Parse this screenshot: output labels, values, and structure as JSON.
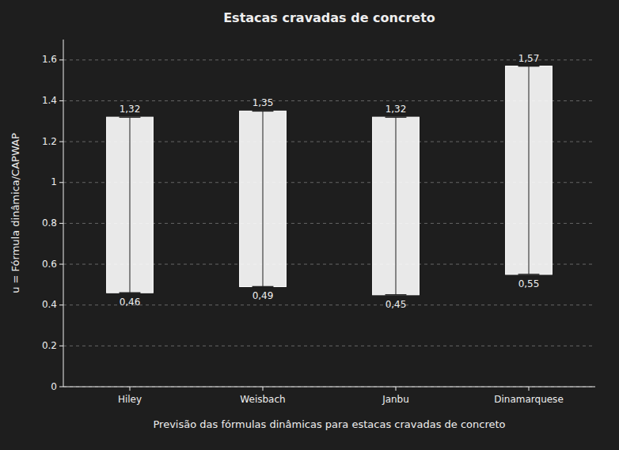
{
  "chart_data": {
    "type": "bar",
    "title": "Estacas cravadas de concreto",
    "xlabel": "Previsão das fórmulas dinâmicas para estacas cravadas de concreto",
    "ylabel": "u = Fórmula dinâmica/CAPWAP",
    "categories": [
      "Hiley",
      "Weisbach",
      "Janbu",
      "Dinamarquese"
    ],
    "values": [
      1.32,
      1.35,
      1.32,
      1.57
    ],
    "value_labels": [
      "1,32",
      "1,35",
      "1,32",
      "1,57"
    ],
    "bottoms": [
      0.46,
      0.49,
      0.45,
      0.55
    ],
    "bottom_labels": [
      "0,46",
      "0,49",
      "0,45",
      "0,55"
    ],
    "color": "#ffffff",
    "ylim": [
      0,
      1.7
    ],
    "yticks": [
      0,
      0.2,
      0.4,
      0.6,
      0.8,
      1,
      1.2,
      1.4,
      1.6
    ],
    "grid": true,
    "data_labels": true
  }
}
